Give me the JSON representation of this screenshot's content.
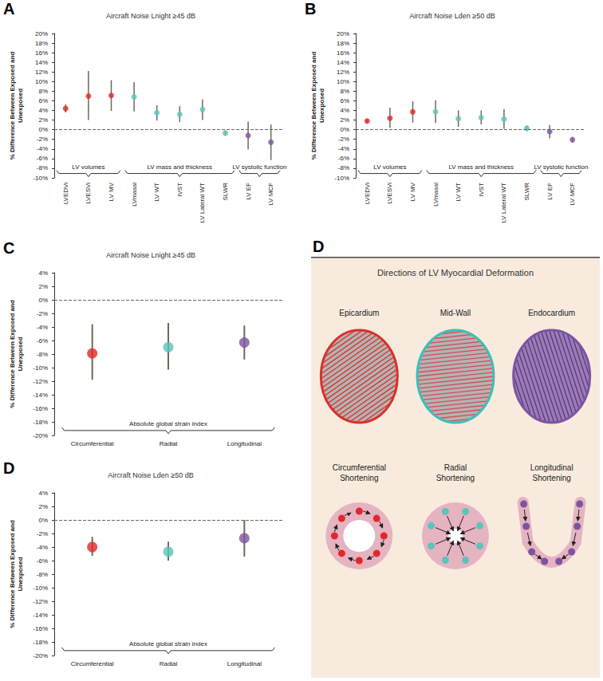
{
  "chart_data": [
    {
      "panel": "A",
      "type": "scatter",
      "title": "Aircraft Noise Lnight ≥45 dB",
      "y_label": "% Difference Between Exposed and Unexposed",
      "categories": [
        "LVEDVi",
        "LVESVi",
        "LV MV",
        "LVmassi",
        "LV WT",
        "IVST",
        "LV Lateral WT",
        "SLWR",
        "LV EF",
        "LV MCF"
      ],
      "values": [
        4.4,
        7.0,
        7.1,
        6.8,
        3.5,
        3.2,
        4.2,
        -0.7,
        -1.2,
        -2.6
      ],
      "lower": [
        3.6,
        2.0,
        3.9,
        3.8,
        1.9,
        1.6,
        2.0,
        -1.2,
        -4.1,
        -6.3
      ],
      "upper": [
        5.3,
        12.2,
        10.3,
        9.9,
        5.1,
        4.9,
        6.3,
        -0.2,
        1.7,
        1.1
      ],
      "colors": [
        "#e0282b",
        "#e0282b",
        "#e0282b",
        "#5bc4bd",
        "#5bc4bd",
        "#5bc4bd",
        "#5bc4bd",
        "#5bc4bd",
        "#7d54a3",
        "#7d54a3"
      ],
      "groups": [
        {
          "label": "LV volumes",
          "categories": [
            "LVEDVi",
            "LVESVi",
            "LV MV"
          ]
        },
        {
          "label": "LV mass and thickness",
          "categories": [
            "LVmassi",
            "LV WT",
            "IVST",
            "LV Lateral WT",
            "SLWR"
          ]
        },
        {
          "label": "LV systolic function",
          "categories": [
            "LV EF",
            "LV MCF"
          ]
        }
      ],
      "ylim": [
        -10,
        20
      ],
      "yticks": [
        {
          "value": -10,
          "label": "-10%"
        },
        {
          "value": -8,
          "label": "-8%"
        },
        {
          "value": -6,
          "label": "-6%"
        },
        {
          "value": -4,
          "label": "-4%"
        },
        {
          "value": -2,
          "label": "-2%"
        },
        {
          "value": 0,
          "label": "0%"
        },
        {
          "value": 2,
          "label": "2%"
        },
        {
          "value": 4,
          "label": "4%"
        },
        {
          "value": 6,
          "label": "6%"
        },
        {
          "value": 8,
          "label": "8%"
        },
        {
          "value": 10,
          "label": "10%"
        },
        {
          "value": 12,
          "label": "12%"
        },
        {
          "value": 14,
          "label": "14%"
        },
        {
          "value": 16,
          "label": "16%"
        },
        {
          "value": 18,
          "label": "18%"
        },
        {
          "value": 20,
          "label": "20%"
        }
      ],
      "grid": false
    },
    {
      "panel": "B",
      "type": "scatter",
      "title": "Aircraft Noise Lden ≥50 dB",
      "y_label": "% Difference Between Exposed and Unexposed",
      "categories": [
        "LVEDVi",
        "LVESVi",
        "LV MV",
        "LVmassi",
        "LV WT",
        "IVST",
        "LV Lateral WT",
        "SLWR",
        "LV EF",
        "LV MCF"
      ],
      "values": [
        1.8,
        2.4,
        3.7,
        3.7,
        2.3,
        2.5,
        2.2,
        0.3,
        -0.4,
        -2.1
      ],
      "lower": [
        1.4,
        0.4,
        1.5,
        1.4,
        0.6,
        1.1,
        0.2,
        -0.3,
        -1.8,
        -2.7
      ],
      "upper": [
        2.2,
        4.6,
        5.9,
        6.1,
        4.0,
        4.0,
        4.3,
        0.8,
        1.0,
        -1.5
      ],
      "colors": [
        "#e0282b",
        "#e0282b",
        "#e0282b",
        "#5bc4bd",
        "#5bc4bd",
        "#5bc4bd",
        "#5bc4bd",
        "#5bc4bd",
        "#7d54a3",
        "#7d54a3"
      ],
      "groups": [
        {
          "label": "LV volumes",
          "categories": [
            "LVEDVi",
            "LVESVi",
            "LV MV"
          ]
        },
        {
          "label": "LV mass and thickness",
          "categories": [
            "LVmassi",
            "LV WT",
            "IVST",
            "LV Lateral WT",
            "SLWR"
          ]
        },
        {
          "label": "LV systolic function",
          "categories": [
            "LV EF",
            "LV MCF"
          ]
        }
      ],
      "ylim": [
        -10,
        20
      ],
      "yticks": [
        {
          "value": -10,
          "label": "-10%"
        },
        {
          "value": -8,
          "label": "-8%"
        },
        {
          "value": -6,
          "label": "-6%"
        },
        {
          "value": -4,
          "label": "-4%"
        },
        {
          "value": -2,
          "label": "-2%"
        },
        {
          "value": 0,
          "label": "0%"
        },
        {
          "value": 2,
          "label": "2%"
        },
        {
          "value": 4,
          "label": "4%"
        },
        {
          "value": 6,
          "label": "6%"
        },
        {
          "value": 8,
          "label": "8%"
        },
        {
          "value": 10,
          "label": "10%"
        },
        {
          "value": 12,
          "label": "12%"
        },
        {
          "value": 14,
          "label": "14%"
        },
        {
          "value": 16,
          "label": "16%"
        },
        {
          "value": 18,
          "label": "18%"
        },
        {
          "value": 20,
          "label": "20%"
        }
      ],
      "grid": false
    },
    {
      "panel": "C",
      "type": "scatter",
      "title": "Aircraft Noise Lnight ≥45 dB",
      "y_label": "% Difference Between Exposed and Unexposed",
      "categories": [
        "Circumferential",
        "Radial",
        "Longitudinal"
      ],
      "values": [
        -7.9,
        -7.0,
        -6.3
      ],
      "lower": [
        -11.8,
        -10.3,
        -8.8
      ],
      "upper": [
        -3.6,
        -3.4,
        -3.8
      ],
      "colors": [
        "#e0282b",
        "#5bc4bd",
        "#7d54a3"
      ],
      "groups": [
        {
          "label": "Absolute global strain index",
          "categories": [
            "Circumferential",
            "Radial",
            "Longitudinal"
          ]
        }
      ],
      "ylim": [
        -20,
        4
      ],
      "yticks": [
        {
          "value": -20,
          "label": "-20%"
        },
        {
          "value": -18,
          "label": "-18%"
        },
        {
          "value": -16,
          "label": "-16%"
        },
        {
          "value": -14,
          "label": "-14%"
        },
        {
          "value": -12,
          "label": "-12%"
        },
        {
          "value": -10,
          "label": "-10%"
        },
        {
          "value": -8,
          "label": "-8%"
        },
        {
          "value": -6,
          "label": "-6%"
        },
        {
          "value": -4,
          "label": "-4%"
        },
        {
          "value": -2,
          "label": "-2%"
        },
        {
          "value": 0,
          "label": "0%"
        },
        {
          "value": 2,
          "label": "2%"
        },
        {
          "value": 4,
          "label": "4%"
        }
      ],
      "grid": false
    },
    {
      "panel": "D",
      "type": "scatter",
      "title": "Aircraft Noise Lden ≥50 dB",
      "y_label": "% Difference Between Exposed and Unexposed",
      "categories": [
        "Circumferential",
        "Radial",
        "Longitudinal"
      ],
      "values": [
        -4.0,
        -4.7,
        -2.7
      ],
      "lower": [
        -5.3,
        -6.0,
        -5.4
      ],
      "upper": [
        -2.5,
        -3.2,
        0.0
      ],
      "colors": [
        "#e0282b",
        "#5bc4bd",
        "#7d54a3"
      ],
      "groups": [
        {
          "label": "Absolute global strain index",
          "categories": [
            "Circumferential",
            "Radial",
            "Longitudinal"
          ]
        }
      ],
      "ylim": [
        -20,
        4
      ],
      "yticks": [
        {
          "value": -20,
          "label": "-20%"
        },
        {
          "value": -18,
          "label": "-18%"
        },
        {
          "value": -16,
          "label": "-16%"
        },
        {
          "value": -14,
          "label": "-14%"
        },
        {
          "value": -12,
          "label": "-12%"
        },
        {
          "value": -10,
          "label": "-10%"
        },
        {
          "value": -8,
          "label": "-8%"
        },
        {
          "value": -6,
          "label": "-6%"
        },
        {
          "value": -4,
          "label": "-4%"
        },
        {
          "value": -2,
          "label": "-2%"
        },
        {
          "value": 0,
          "label": "0%"
        },
        {
          "value": 2,
          "label": "2%"
        },
        {
          "value": 4,
          "label": "4%"
        }
      ],
      "grid": false
    }
  ],
  "diagram": {
    "panel": "D",
    "title": "Directions of LV Myocardial Deformation",
    "layers": [
      "Epicardium",
      "Mid-Wall",
      "Endocardium"
    ],
    "shortening": [
      "Circumferential Shortening",
      "Radial Shortening",
      "Longitudinal Shortening"
    ]
  }
}
